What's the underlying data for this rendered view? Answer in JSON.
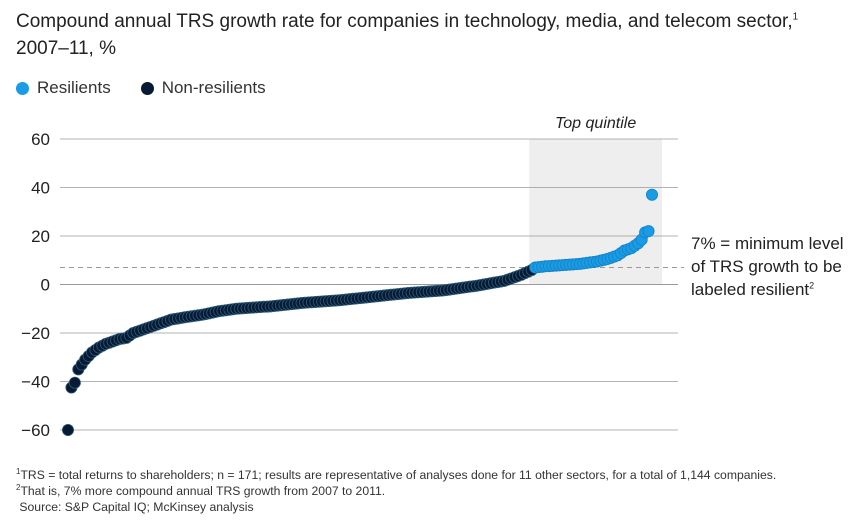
{
  "title": {
    "line1": "Compound annual TRS growth rate for companies in technology, media, and telecom sector,",
    "line1_sup": "1",
    "line2": "2007–11, %"
  },
  "legend": {
    "items": [
      {
        "label": "Resilients",
        "color": "#1a9be6"
      },
      {
        "label": "Non-resilients",
        "color": "#081a33"
      }
    ]
  },
  "annotation": {
    "line1": "7% = minimum level",
    "line2": "of TRS growth to be",
    "line3": "labeled resilient",
    "sup": "2"
  },
  "footnotes": {
    "f1_sup": "1",
    "f1": "TRS = total returns to shareholders; n = 171; results are representative of analyses done for 11 other sectors, for a total of 1,144 companies.",
    "f2_sup": "2",
    "f2": "That is, 7% more compound annual TRS growth from 2007 to 2011.",
    "source": "Source: S&P Capital IQ; McKinsey analysis"
  },
  "colors": {
    "resilient": "#1a9be6",
    "non_resilient": "#081a33",
    "dot_stroke": "#2a5a78",
    "quintile_band": "#eeeeee",
    "gridline": "#9a9a9a",
    "threshold_line": "#999999"
  },
  "chart_data": {
    "type": "scatter",
    "title": "Compound annual TRS growth rate for companies in technology, media, and telecom sector, 2007–11, %",
    "xlabel": "",
    "ylabel": "",
    "ylim": [
      -60,
      60
    ],
    "yticks": [
      60,
      40,
      20,
      0,
      -20,
      -40,
      -60
    ],
    "yticks_labels": [
      "60",
      "40",
      "20",
      "0",
      "−20",
      "−40",
      "−60"
    ],
    "n": 171,
    "threshold": 7,
    "grid": true,
    "legend_position": "top-left",
    "band": {
      "label": "Top quintile",
      "from_rank": 137,
      "to_rank": 171
    },
    "anchors": [
      [
        1,
        -60
      ],
      [
        2,
        -42.5
      ],
      [
        3,
        -40.5
      ],
      [
        4,
        -35
      ],
      [
        5,
        -33
      ],
      [
        6,
        -31
      ],
      [
        7,
        -29.5
      ],
      [
        8,
        -28
      ],
      [
        10,
        -26
      ],
      [
        12,
        -24.5
      ],
      [
        14,
        -23.5
      ],
      [
        16,
        -22.5
      ],
      [
        18,
        -22
      ],
      [
        20,
        -20
      ],
      [
        22,
        -19
      ],
      [
        25,
        -17.5
      ],
      [
        28,
        -16
      ],
      [
        31,
        -14.5
      ],
      [
        35,
        -13.5
      ],
      [
        40,
        -12.5
      ],
      [
        45,
        -11
      ],
      [
        50,
        -10
      ],
      [
        60,
        -9
      ],
      [
        70,
        -7.5
      ],
      [
        80,
        -6.5
      ],
      [
        90,
        -5
      ],
      [
        100,
        -3.5
      ],
      [
        110,
        -2.5
      ],
      [
        120,
        -0.5
      ],
      [
        128,
        1.5
      ],
      [
        133,
        4
      ],
      [
        136,
        6
      ],
      [
        137,
        7
      ],
      [
        140,
        7.5
      ],
      [
        145,
        8
      ],
      [
        150,
        8.5
      ],
      [
        155,
        9.5
      ],
      [
        158,
        10.5
      ],
      [
        161,
        12
      ],
      [
        163,
        14
      ],
      [
        165,
        15
      ],
      [
        167,
        17
      ],
      [
        168,
        18.5
      ],
      [
        169,
        21.5
      ],
      [
        170,
        22
      ],
      [
        171,
        37
      ]
    ]
  }
}
